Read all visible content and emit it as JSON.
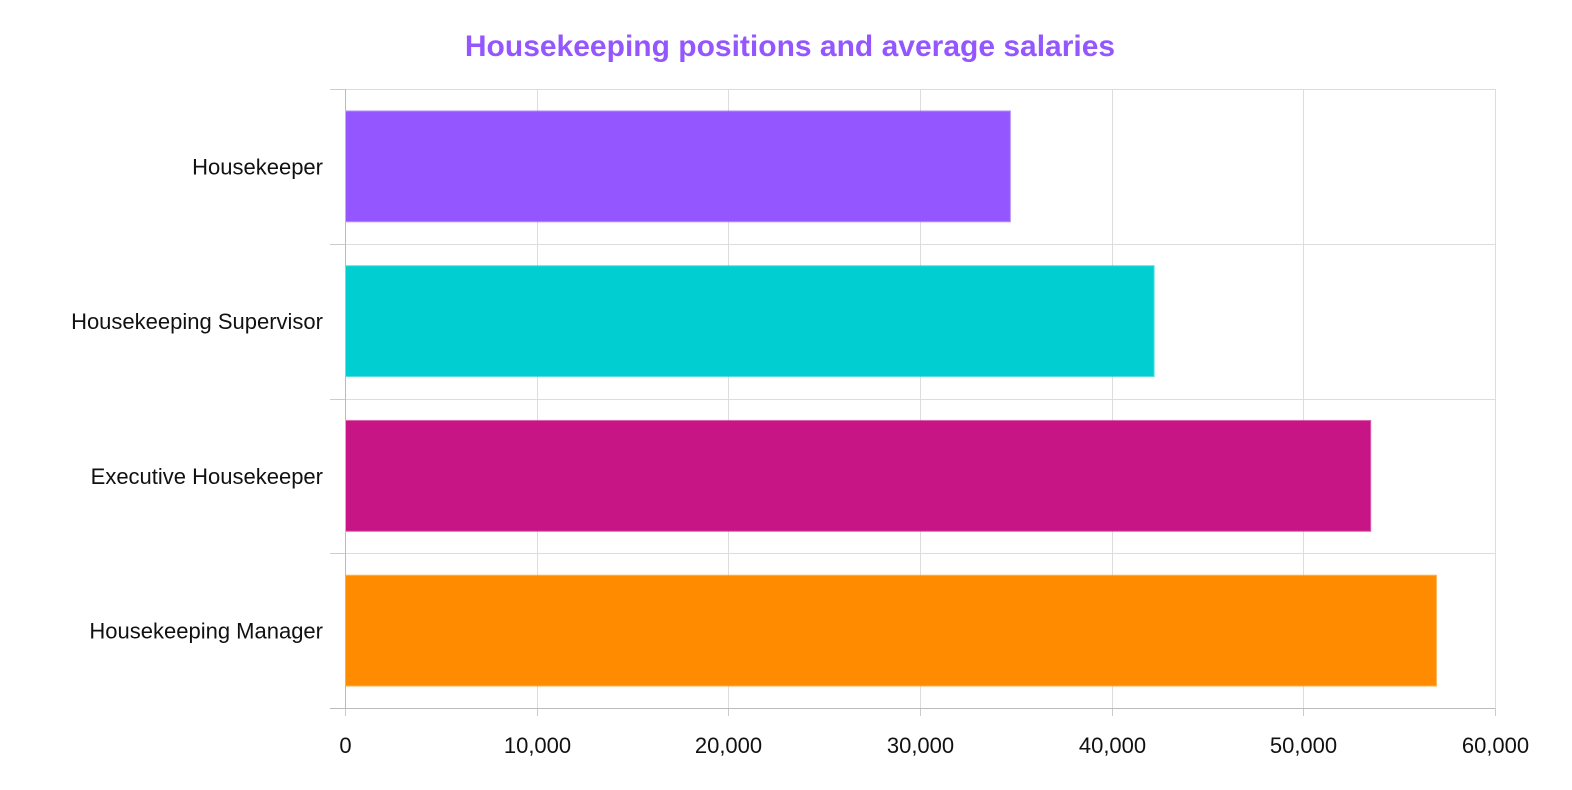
{
  "chart_data": {
    "type": "bar",
    "orientation": "horizontal",
    "title": "Housekeeping positions and average salaries",
    "title_color": "#9457ff",
    "categories": [
      "Housekeeper",
      "Housekeeping Supervisor",
      "Executive Housekeeper",
      "Housekeeping Manager"
    ],
    "values": [
      34690,
      42190,
      53490,
      56920
    ],
    "colors": [
      "#9457ff",
      "#00ced1",
      "#c71585",
      "#ff8c00"
    ],
    "xlim": [
      0,
      60000
    ],
    "x_ticks": [
      0,
      10000,
      20000,
      30000,
      40000,
      50000,
      60000
    ],
    "x_tick_labels": [
      "0",
      "10,000",
      "20,000",
      "30,000",
      "40,000",
      "50,000",
      "60,000"
    ],
    "xlabel": "",
    "ylabel": "",
    "grid": true,
    "legend": "none"
  }
}
